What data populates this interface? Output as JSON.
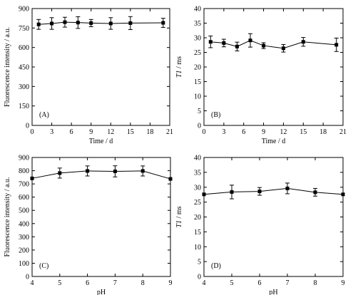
{
  "chart_data": [
    {
      "type": "line",
      "panel_label": "(A)",
      "xlabel": "Time / d",
      "ylabel": "Fluorescence intensity / a.u.",
      "xlim": [
        0,
        21
      ],
      "ylim": [
        0,
        900
      ],
      "xticks": [
        0,
        3,
        6,
        9,
        12,
        15,
        18,
        21
      ],
      "yticks": [
        0,
        150,
        300,
        450,
        600,
        750,
        900
      ],
      "grid": false,
      "marker": "square",
      "x": [
        1,
        3,
        5,
        7,
        9,
        12,
        15,
        20
      ],
      "y": [
        778,
        785,
        795,
        792,
        788,
        785,
        788,
        790
      ],
      "err": [
        38,
        45,
        38,
        45,
        28,
        45,
        50,
        35
      ]
    },
    {
      "type": "line",
      "panel_label": "(B)",
      "xlabel": "Time / d",
      "ylabel_italic": "T1",
      "ylabel_rest": " / ms",
      "xlim": [
        0,
        21
      ],
      "ylim": [
        0,
        40
      ],
      "xticks": [
        0,
        3,
        6,
        9,
        12,
        15,
        18,
        21
      ],
      "yticks": [
        0,
        5,
        10,
        15,
        20,
        25,
        30,
        35,
        40
      ],
      "grid": false,
      "marker": "square",
      "x": [
        1,
        3,
        5,
        7,
        9,
        12,
        15,
        20
      ],
      "y": [
        28.6,
        28.2,
        27.0,
        29.1,
        27.3,
        26.4,
        28.6,
        27.6
      ],
      "err": [
        2.0,
        1.3,
        1.5,
        2.3,
        1.0,
        1.3,
        1.5,
        2.3
      ]
    },
    {
      "type": "line",
      "panel_label": "(C)",
      "xlabel": "pH",
      "ylabel": "Fluorescence intensity / a.u.",
      "xlim": [
        4,
        9
      ],
      "ylim": [
        0,
        900
      ],
      "xticks": [
        4,
        5,
        6,
        7,
        8,
        9
      ],
      "yticks": [
        0,
        100,
        200,
        300,
        400,
        500,
        600,
        700,
        800,
        900
      ],
      "grid": false,
      "marker": "square",
      "x": [
        4,
        5,
        6,
        7,
        8,
        9
      ],
      "y": [
        742,
        782,
        798,
        795,
        798,
        738
      ],
      "err": [
        0,
        38,
        38,
        42,
        38,
        0
      ]
    },
    {
      "type": "line",
      "panel_label": "(D)",
      "xlabel": "pH",
      "ylabel_italic": "T1",
      "ylabel_rest": " / ms",
      "xlim": [
        4,
        9
      ],
      "ylim": [
        0,
        40
      ],
      "xticks": [
        4,
        5,
        6,
        7,
        8,
        9
      ],
      "yticks": [
        0,
        5,
        10,
        15,
        20,
        25,
        30,
        35,
        40
      ],
      "grid": false,
      "marker": "square",
      "x": [
        4,
        5,
        6,
        7,
        8,
        9
      ],
      "y": [
        27.6,
        28.4,
        28.6,
        29.6,
        28.3,
        27.6
      ],
      "err": [
        0,
        2.3,
        1.3,
        1.8,
        1.3,
        0
      ]
    }
  ]
}
